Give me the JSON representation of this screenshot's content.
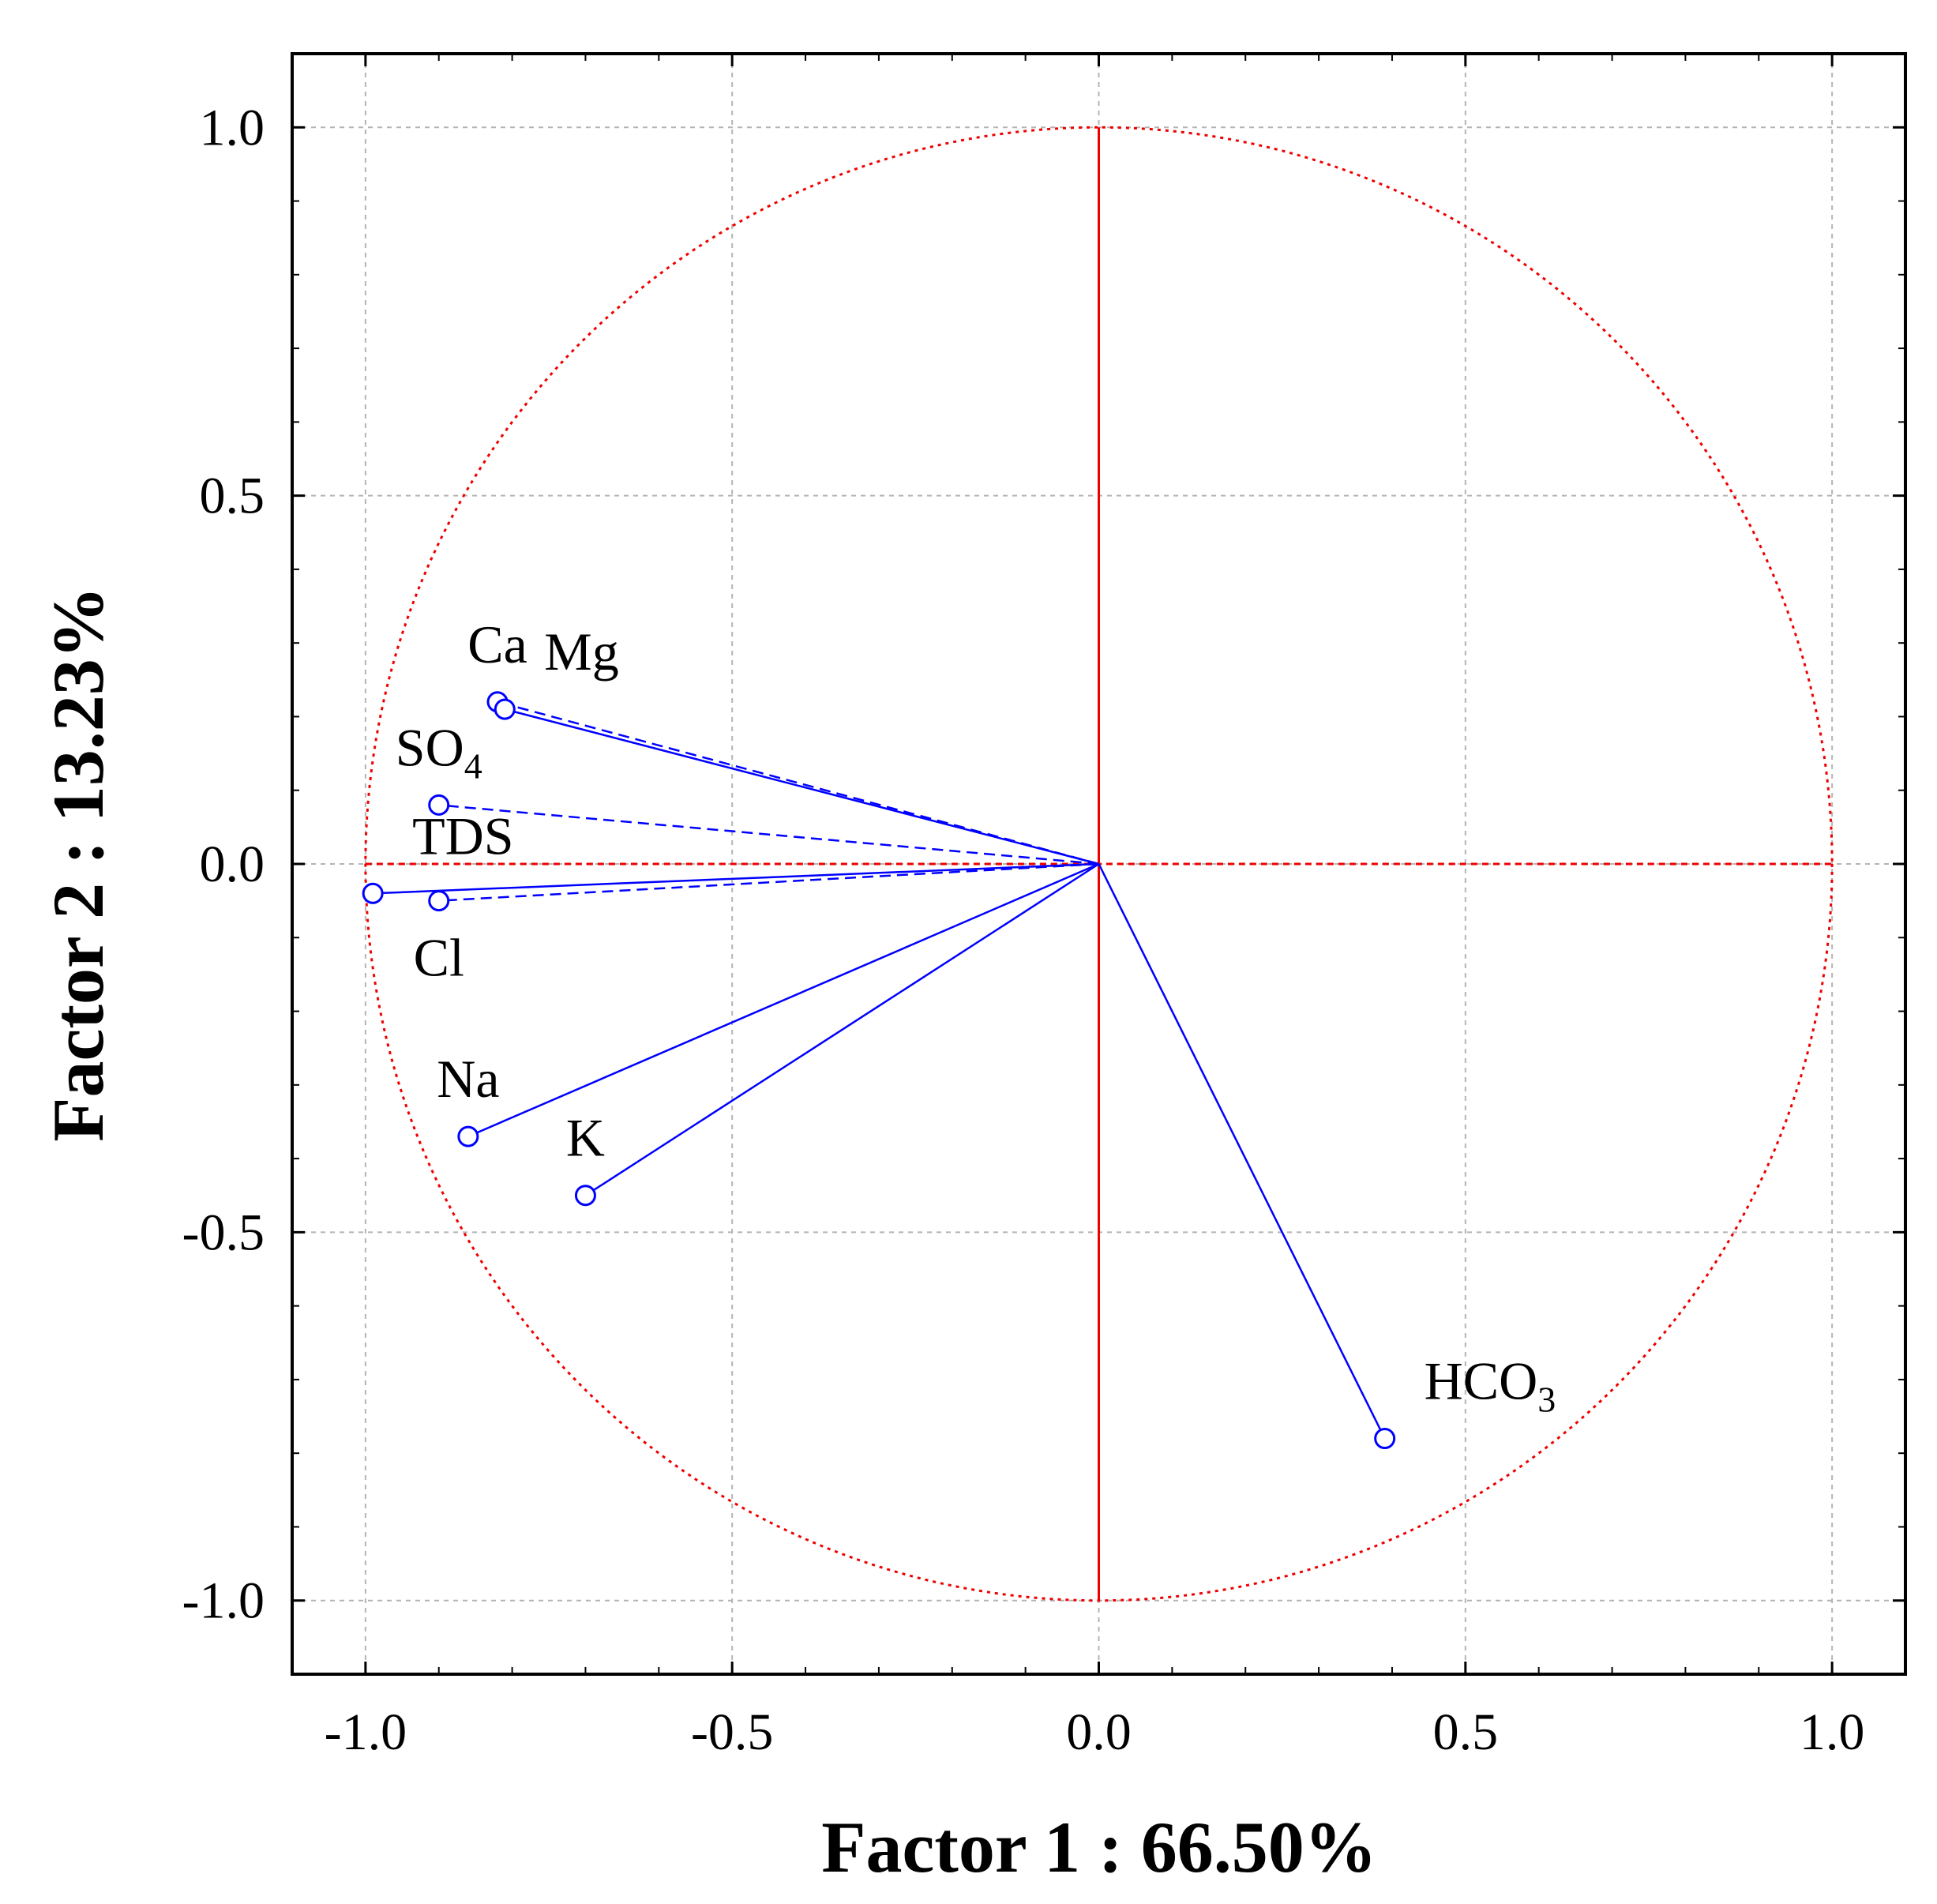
{
  "chart_data": {
    "type": "scatter",
    "subtype": "pca-correlation-circle",
    "xlabel": "Factor 1 : 66.50%",
    "ylabel": "Factor 2 : 13.23%",
    "xlim": [
      -1.1,
      1.1
    ],
    "ylim": [
      -1.1,
      1.1
    ],
    "xticks": [
      -1.0,
      -0.5,
      0.0,
      0.5,
      1.0
    ],
    "yticks": [
      -1.0,
      -0.5,
      0.0,
      0.5,
      1.0
    ],
    "xtick_labels": [
      "-1.0",
      "-0.5",
      "0.0",
      "0.5",
      "1.0"
    ],
    "ytick_labels": [
      "-1.0",
      "-0.5",
      "0.0",
      "0.5",
      "1.0"
    ],
    "grid": true,
    "unit_circle_radius": 1.0,
    "colors": {
      "vectors": "#0000ff",
      "circle": "#ee0000",
      "grid": "#b4b4b4",
      "axes": "#000000"
    },
    "variables": [
      {
        "name": "Ca",
        "base": "Ca",
        "sub": "",
        "x": -0.82,
        "y": 0.22,
        "label_anchor": "above",
        "line": "dashed"
      },
      {
        "name": "Mg",
        "base": "Mg",
        "sub": "",
        "x": -0.81,
        "y": 0.21,
        "label_anchor": "above-right",
        "line": "solid"
      },
      {
        "name": "SO4",
        "base": "SO",
        "sub": "4",
        "x": -0.9,
        "y": 0.08,
        "label_anchor": "above",
        "line": "dashed"
      },
      {
        "name": "TDS",
        "base": "TDS",
        "sub": "",
        "x": -0.99,
        "y": -0.04,
        "label_anchor": "above-right",
        "line": "solid"
      },
      {
        "name": "Cl",
        "base": "Cl",
        "sub": "",
        "x": -0.9,
        "y": -0.05,
        "label_anchor": "below",
        "line": "dashed"
      },
      {
        "name": "Na",
        "base": "Na",
        "sub": "",
        "x": -0.86,
        "y": -0.37,
        "label_anchor": "above",
        "line": "solid"
      },
      {
        "name": "K",
        "base": "K",
        "sub": "",
        "x": -0.7,
        "y": -0.45,
        "label_anchor": "above",
        "line": "solid"
      },
      {
        "name": "HCO3",
        "base": "HCO",
        "sub": "3",
        "x": 0.39,
        "y": -0.78,
        "label_anchor": "above-right",
        "line": "solid"
      }
    ]
  }
}
